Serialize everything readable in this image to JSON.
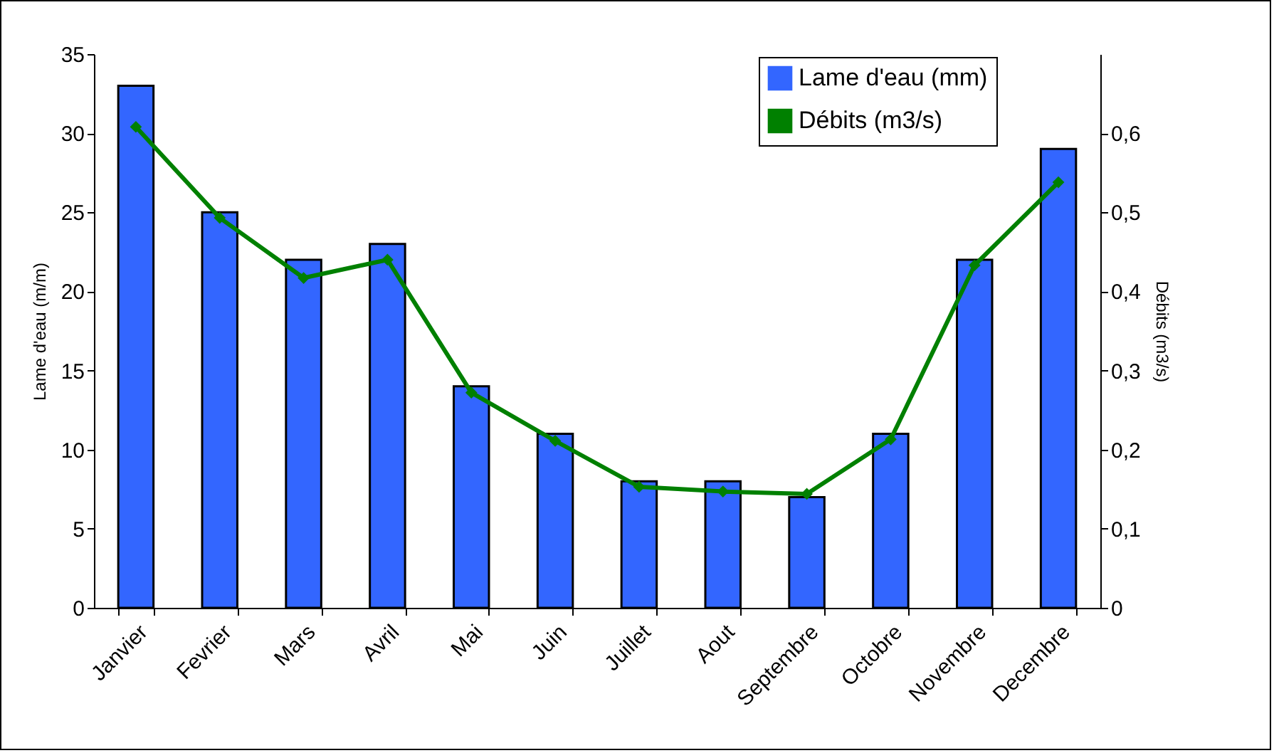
{
  "chart_data": {
    "type": "bar",
    "ylabel": "Lame d'eau (m/m)",
    "y2label": "Débits (m3/s)",
    "categories": [
      "Janvier",
      "Fevrier",
      "Mars",
      "Avril",
      "Mai",
      "Juin",
      "Juillet",
      "Aout",
      "Septembre",
      "Octobre",
      "Novembre",
      "Decembre"
    ],
    "series": [
      {
        "name": "Lame d'eau (mm)",
        "color": "#3366ff",
        "values": [
          33,
          25,
          22,
          23,
          14,
          11,
          8,
          8,
          7,
          11,
          22,
          29
        ]
      },
      {
        "name": "Débits (m3/s)",
        "type": "line",
        "axis": "y2",
        "color": "#008000",
        "marker": "diamond",
        "values": [
          0.608,
          0.493,
          0.417,
          0.44,
          0.272,
          0.211,
          0.153,
          0.147,
          0.144,
          0.213,
          0.433,
          0.538
        ]
      }
    ],
    "ylim": [
      0,
      35
    ],
    "yticks": [
      0,
      5,
      10,
      15,
      20,
      25,
      30,
      35
    ],
    "y2lim": [
      0,
      0.7
    ],
    "y2ticks": [
      0,
      {
        "value": 0.1,
        "label": "0,1"
      },
      {
        "value": 0.2,
        "label": "0,2"
      },
      {
        "value": 0.3,
        "label": "0,3"
      },
      {
        "value": 0.4,
        "label": "0,4"
      },
      {
        "value": 0.5,
        "label": "0,5"
      },
      {
        "value": 0.6,
        "label": "0,6"
      }
    ],
    "grid": false,
    "legend": "top right"
  }
}
